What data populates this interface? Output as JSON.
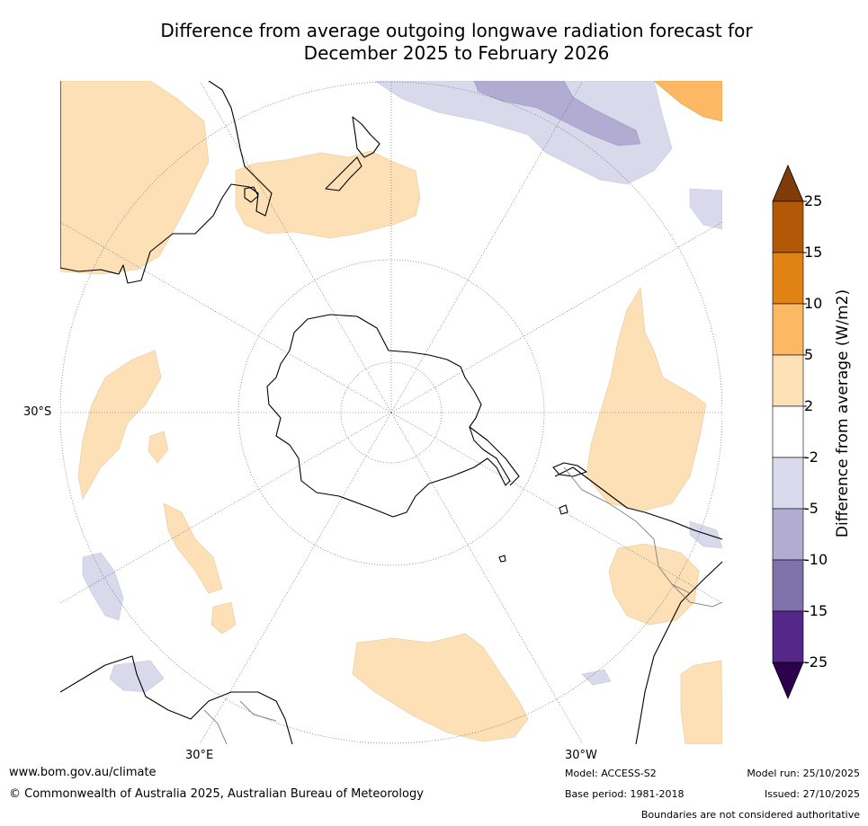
{
  "title_line1": "Difference from average outgoing longwave radiation forecast for",
  "title_line2": "December 2025 to February 2026",
  "map": {
    "lat_label": "30°S",
    "lon_label_east": "30°E",
    "lon_label_west": "30°W",
    "colors": {
      "land_outline": "#000000",
      "border": "#888888",
      "grid": "#555555"
    }
  },
  "colorbar": {
    "title": "Difference from average (W/m2)",
    "ticks": [
      "25",
      "15",
      "10",
      "5",
      "2",
      "-2",
      "-5",
      "-10",
      "-15",
      "-25"
    ],
    "bins": [
      {
        "range": "above 25",
        "color": "#7f3b08"
      },
      {
        "range": "15 to 25",
        "color": "#b35806"
      },
      {
        "range": "10 to 15",
        "color": "#e08214"
      },
      {
        "range": "5 to 10",
        "color": "#fdb863"
      },
      {
        "range": "2 to 5",
        "color": "#fee0b6"
      },
      {
        "range": "-2 to 2",
        "color": "#ffffff"
      },
      {
        "range": "-5 to -2",
        "color": "#d8daeb"
      },
      {
        "range": "-10 to -5",
        "color": "#b2abd2"
      },
      {
        "range": "-15 to -10",
        "color": "#8073ac"
      },
      {
        "range": "-25 to -15",
        "color": "#542788"
      },
      {
        "range": "below -25",
        "color": "#2d004b"
      }
    ]
  },
  "footer": {
    "website": "www.bom.gov.au/climate",
    "copyright": "© Commonwealth of Australia 2025, Australian Bureau of Meteorology",
    "model": "Model: ACCESS-S2",
    "base_period": "Base period: 1981-2018",
    "model_run": "Model run: 25/10/2025",
    "issued": "Issued: 27/10/2025",
    "disclaimer": "Boundaries are not considered authoritative"
  }
}
